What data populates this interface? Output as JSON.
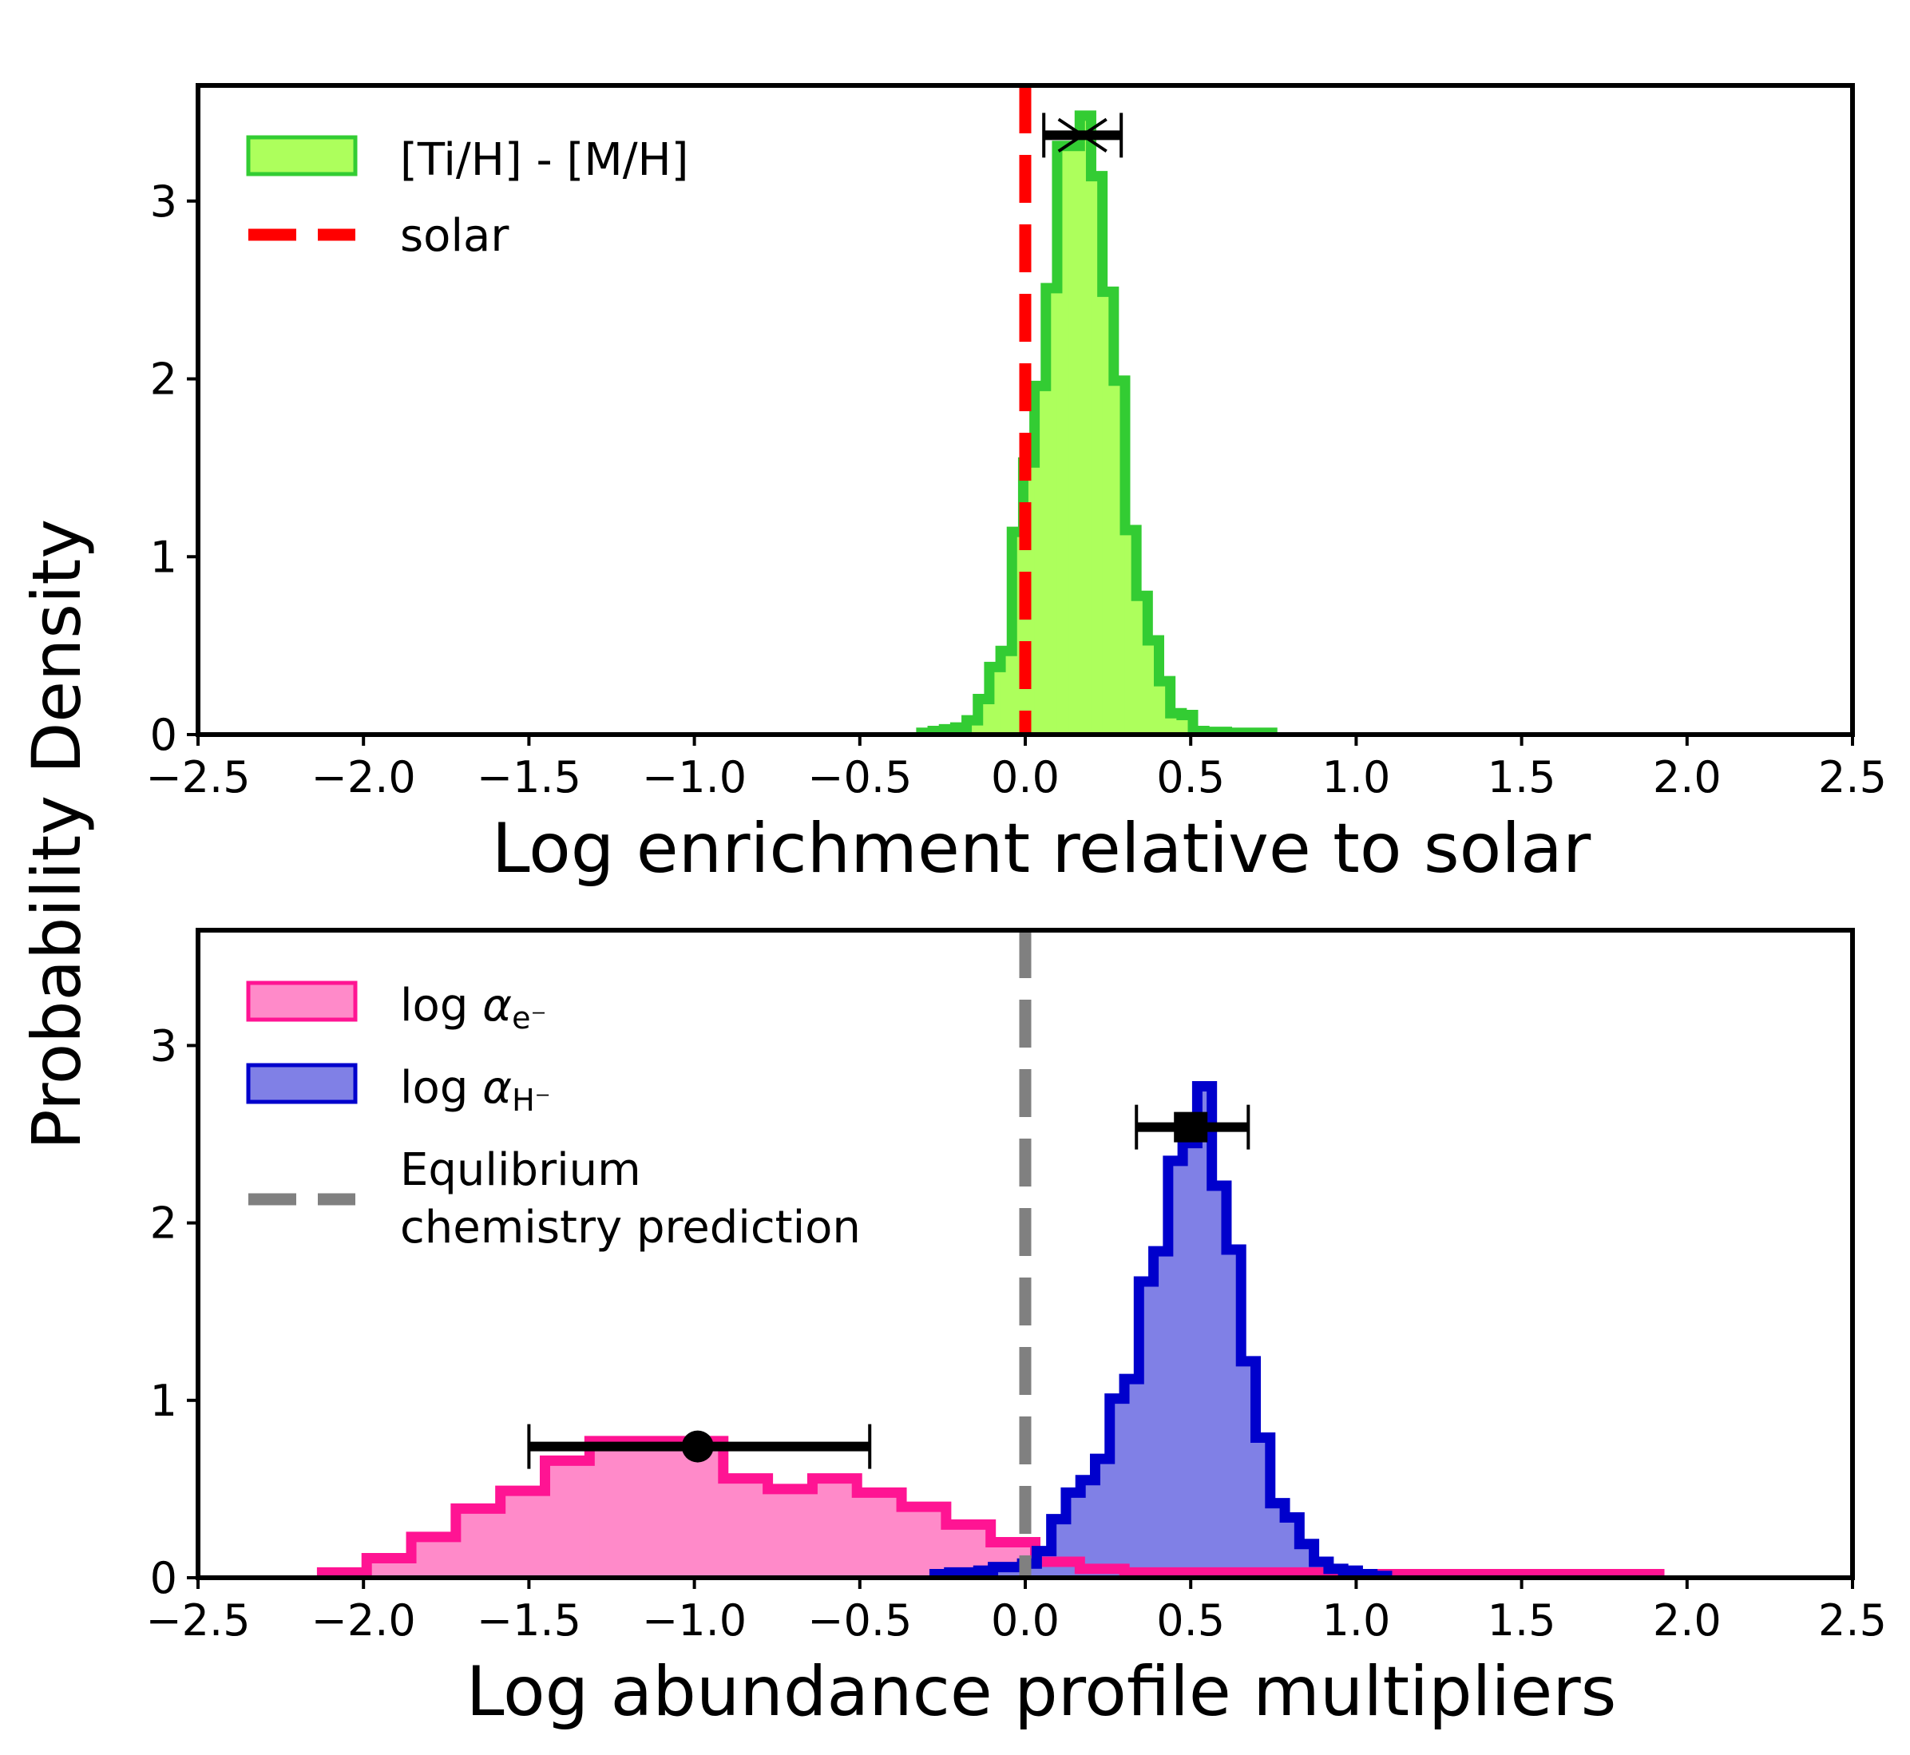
{
  "ylabel": "Probability Density",
  "chart_data": [
    {
      "type": "histogram",
      "xlabel": "Log enrichment relative to solar",
      "xlim": [
        -2.5,
        2.5
      ],
      "ylim": [
        0,
        3.65
      ],
      "xticks": [
        -2.5,
        -2.0,
        -1.5,
        -1.0,
        -0.5,
        0.0,
        0.5,
        1.0,
        1.5,
        2.0,
        2.5
      ],
      "xtick_labels": [
        "−2.5",
        "−2.0",
        "−1.5",
        "−1.0",
        "−0.5",
        "0.0",
        "0.5",
        "1.0",
        "1.5",
        "2.0",
        "2.5"
      ],
      "yticks": [
        0,
        1,
        2,
        3
      ],
      "ytick_labels": [
        "0",
        "1",
        "2",
        "3"
      ],
      "grid": false,
      "legend_position": "top-left",
      "series": [
        {
          "name": "[Ti/H] - [M/H]",
          "fill_color": "#adff5c",
          "edge_color": "#33cc33",
          "bin_start": -0.314,
          "bin_width": 0.0342,
          "values": [
            0.01,
            0.02,
            0.03,
            0.04,
            0.08,
            0.2,
            0.38,
            0.47,
            1.14,
            1.53,
            1.96,
            2.51,
            3.31,
            3.31,
            3.48,
            3.14,
            2.49,
            1.99,
            1.15,
            0.78,
            0.53,
            0.3,
            0.12,
            0.11,
            0.02,
            0.015,
            0.015,
            0.01,
            0.01,
            0.01,
            0.01
          ],
          "marker": {
            "shape": "x",
            "x": 0.173,
            "y": 3.37,
            "xerr_low": 0.056,
            "xerr_high": 0.29
          }
        }
      ],
      "vlines": [
        {
          "name": "solar",
          "x": 0.0,
          "color": "#ff0000",
          "style": "dashed"
        }
      ]
    },
    {
      "type": "histogram",
      "xlabel": "Log abundance profile multipliers",
      "xlim": [
        -2.5,
        2.5
      ],
      "ylim": [
        0,
        3.65
      ],
      "xticks": [
        -2.5,
        -2.0,
        -1.5,
        -1.0,
        -0.5,
        0.0,
        0.5,
        1.0,
        1.5,
        2.0,
        2.5
      ],
      "xtick_labels": [
        "−2.5",
        "−2.0",
        "−1.5",
        "−1.0",
        "−0.5",
        "0.0",
        "0.5",
        "1.0",
        "1.5",
        "2.0",
        "2.5"
      ],
      "yticks": [
        0,
        1,
        2,
        3
      ],
      "ytick_labels": [
        "0",
        "1",
        "2",
        "3"
      ],
      "grid": false,
      "legend_position": "top-left",
      "series": [
        {
          "name": "log αe⁻",
          "label_parts": {
            "prefix": "log ",
            "symbol": "α",
            "subscript": "e⁻"
          },
          "fill_color": "#ff8ac9",
          "edge_color": "#ff1493",
          "bin_start": -2.125,
          "bin_width": 0.1347,
          "values": [
            0.03,
            0.11,
            0.23,
            0.39,
            0.49,
            0.66,
            0.77,
            0.77,
            0.77,
            0.56,
            0.5,
            0.56,
            0.48,
            0.4,
            0.3,
            0.2,
            0.09,
            0.05,
            0.03,
            0.03,
            0.03,
            0.03,
            0.03,
            0.02,
            0.02,
            0.02,
            0.02,
            0.02,
            0.02,
            0.02
          ],
          "marker": {
            "shape": "circle",
            "x": -0.99,
            "y": 0.74,
            "xerr_low": -1.5,
            "xerr_high": -0.47
          }
        },
        {
          "name": "log αH⁻",
          "label_parts": {
            "prefix": "log ",
            "symbol": "α",
            "subscript": "H⁻"
          },
          "fill_color": "#8080e6",
          "edge_color": "#0000cc",
          "bin_start": -0.274,
          "bin_width": 0.0441,
          "values": [
            0.02,
            0.03,
            0.03,
            0.04,
            0.06,
            0.06,
            0.08,
            0.15,
            0.33,
            0.48,
            0.55,
            0.67,
            1.01,
            1.12,
            1.67,
            1.84,
            2.35,
            2.45,
            2.77,
            2.21,
            1.85,
            1.22,
            0.79,
            0.42,
            0.34,
            0.19,
            0.09,
            0.05,
            0.04,
            0.02,
            0.01
          ],
          "marker": {
            "shape": "square",
            "x": 0.5,
            "y": 2.54,
            "xerr_low": 0.336,
            "xerr_high": 0.674
          }
        }
      ],
      "vlines": [
        {
          "name": "Equlibrium chemistry prediction",
          "label_lines": [
            "Equlibrium",
            "chemistry prediction"
          ],
          "x": 0.0,
          "color": "#808080",
          "style": "dashed"
        }
      ]
    }
  ]
}
